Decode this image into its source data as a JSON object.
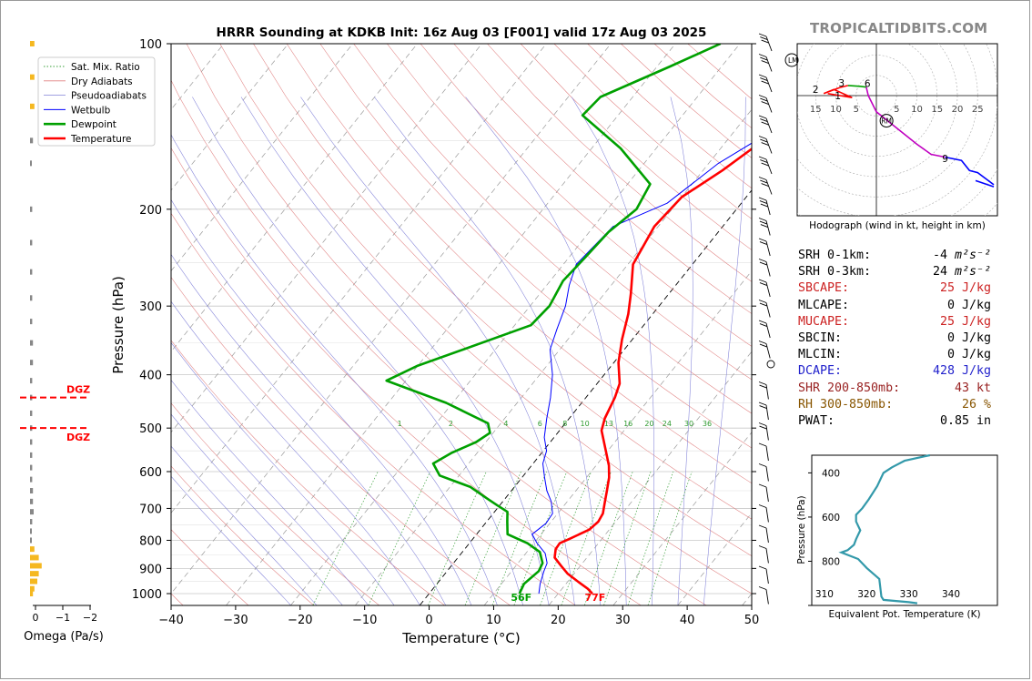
{
  "chart_data": {
    "type": "line",
    "title": "HRRR Sounding at KDKB Init: 16z Aug 03 [F001] valid 17z Aug 03 2025",
    "xlabel": "Temperature (°C)",
    "ylabel": "Pressure (hPa)",
    "x_ticks": [
      "−40",
      "−30",
      "−20",
      "−10",
      "0",
      "10",
      "20",
      "30",
      "40",
      "50"
    ],
    "y_ticks": [
      "100",
      "200",
      "300",
      "400",
      "500",
      "600",
      "700",
      "800",
      "900",
      "1000"
    ],
    "xlim": [
      -40,
      50
    ],
    "ylim": [
      1050,
      100
    ],
    "y_scale": "log",
    "legend": {
      "placement": "upper-left",
      "entries": [
        "Sat. Mix. Ratio",
        "Dry Adiabats",
        "Pseudoadiabats",
        "Wetbulb",
        "Dewpoint",
        "Temperature"
      ]
    },
    "mixing_ratio_labels": [
      "1",
      "2",
      "4",
      "6",
      "8",
      "10",
      "13",
      "16",
      "20",
      "24",
      "30",
      "36"
    ],
    "surface_labels": {
      "dewpoint": "56F",
      "temperature": "77F"
    },
    "series": [
      {
        "name": "Temperature",
        "color": "#ff0000",
        "points": [
          [
            25.3,
            1000
          ],
          [
            24.0,
            980
          ],
          [
            21.5,
            950
          ],
          [
            19.0,
            920
          ],
          [
            17.0,
            890
          ],
          [
            15.0,
            860
          ],
          [
            14.1,
            830
          ],
          [
            14.0,
            810
          ],
          [
            15.0,
            795
          ],
          [
            16.9,
            765
          ],
          [
            17.3,
            740
          ],
          [
            17.0,
            715
          ],
          [
            16.0,
            685
          ],
          [
            14.8,
            650
          ],
          [
            13.5,
            615
          ],
          [
            12.0,
            585
          ],
          [
            9.0,
            540
          ],
          [
            6.5,
            505
          ],
          [
            5.5,
            480
          ],
          [
            4.5,
            440
          ],
          [
            3.5,
            415
          ],
          [
            0.7,
            380
          ],
          [
            -1.6,
            345
          ],
          [
            -3.8,
            310
          ],
          [
            -5.9,
            285
          ],
          [
            -9.2,
            252
          ],
          [
            -10.6,
            215
          ],
          [
            -10.0,
            190
          ],
          [
            -7.0,
            170
          ],
          [
            -4.4,
            150
          ],
          [
            -4.5,
            135
          ],
          [
            -2.8,
            120
          ],
          [
            0.8,
            108
          ],
          [
            1.5,
            100
          ]
        ]
      },
      {
        "name": "Dewpoint",
        "color": "#00a000",
        "points": [
          [
            14.0,
            1000
          ],
          [
            13.5,
            960
          ],
          [
            14.2,
            910
          ],
          [
            13.8,
            880
          ],
          [
            12.0,
            840
          ],
          [
            9.0,
            810
          ],
          [
            4.8,
            780
          ],
          [
            3.2,
            740
          ],
          [
            2.0,
            710
          ],
          [
            -0.5,
            690
          ],
          [
            -3.0,
            670
          ],
          [
            -6.8,
            640
          ],
          [
            -13.0,
            610
          ],
          [
            -15.5,
            580
          ],
          [
            -14.0,
            555
          ],
          [
            -11.5,
            530
          ],
          [
            -10.5,
            510
          ],
          [
            -12.0,
            490
          ],
          [
            -21.0,
            450
          ],
          [
            -33.0,
            410
          ],
          [
            -30.0,
            385
          ],
          [
            -25.0,
            360
          ],
          [
            -17.5,
            325
          ],
          [
            -17.0,
            300
          ],
          [
            -18.0,
            270
          ],
          [
            -17.5,
            245
          ],
          [
            -17.0,
            220
          ],
          [
            -15.5,
            200
          ],
          [
            -16.5,
            180
          ],
          [
            -25.5,
            155
          ],
          [
            -35.5,
            135
          ],
          [
            -35.0,
            125
          ],
          [
            -28.0,
            110
          ],
          [
            -23.0,
            100
          ]
        ]
      },
      {
        "name": "Wetbulb",
        "color": "#0000ff",
        "points": [
          [
            17.0,
            1000
          ],
          [
            16.0,
            960
          ],
          [
            15.0,
            910
          ],
          [
            14.5,
            880
          ],
          [
            13.0,
            845
          ],
          [
            10.5,
            810
          ],
          [
            8.6,
            780
          ],
          [
            9.4,
            745
          ],
          [
            9.2,
            715
          ],
          [
            7.5,
            680
          ],
          [
            5.5,
            650
          ],
          [
            3.5,
            615
          ],
          [
            1.5,
            580
          ],
          [
            0.5,
            550
          ],
          [
            -1.5,
            520
          ],
          [
            -3.5,
            480
          ],
          [
            -5.5,
            440
          ],
          [
            -8.0,
            400
          ],
          [
            -11.5,
            360
          ],
          [
            -13.0,
            330
          ],
          [
            -14.5,
            300
          ],
          [
            -16.5,
            275
          ],
          [
            -18.0,
            252
          ],
          [
            -17.0,
            215
          ],
          [
            -11.5,
            195
          ],
          [
            -8.5,
            165
          ],
          [
            -5.5,
            150
          ],
          [
            -5.0,
            135
          ],
          [
            -4.0,
            120
          ],
          [
            0.0,
            105
          ],
          [
            1.0,
            100
          ]
        ]
      }
    ],
    "omega_panel": {
      "xlabel": "Omega (Pa/s)",
      "x_ticks": [
        "0",
        "−1",
        "−2"
      ],
      "dgz_labels": [
        "DGZ",
        "DGZ"
      ],
      "dgz_pressures": [
        440,
        500
      ],
      "bars": [
        [
          100,
          0.3
        ],
        [
          115,
          0.3
        ],
        [
          130,
          0.3
        ],
        [
          150,
          0.2
        ],
        [
          165,
          0.1
        ],
        [
          200,
          0.15
        ],
        [
          230,
          0.15
        ],
        [
          260,
          0.15
        ],
        [
          290,
          0.15
        ],
        [
          320,
          0.15
        ],
        [
          350,
          0.2
        ],
        [
          380,
          0.2
        ],
        [
          410,
          0.15
        ],
        [
          440,
          0.15
        ],
        [
          470,
          0.15
        ],
        [
          500,
          0.15
        ],
        [
          530,
          0.15
        ],
        [
          560,
          0.15
        ],
        [
          590,
          0.15
        ],
        [
          620,
          0.15
        ],
        [
          650,
          0.2
        ],
        [
          680,
          0.2
        ],
        [
          710,
          0.25
        ],
        [
          740,
          0.15
        ],
        [
          770,
          0.1
        ],
        [
          800,
          0.1
        ],
        [
          830,
          0.3
        ],
        [
          860,
          0.6
        ],
        [
          890,
          0.8
        ],
        [
          920,
          0.6
        ],
        [
          950,
          0.5
        ],
        [
          980,
          0.3
        ],
        [
          1000,
          0.2
        ]
      ]
    },
    "hodograph": {
      "title": "Hodograph (wind in kt, height in km)",
      "range_labels": [
        "15",
        "10",
        "5",
        "5",
        "10",
        "15",
        "20",
        "25"
      ],
      "height_labels": [
        "1",
        "2",
        "3",
        "6",
        "9"
      ],
      "marker_labels": [
        "RM",
        "LM"
      ],
      "segments": [
        {
          "color": "#ff0000",
          "points": [
            [
              -12.0,
              0.5
            ],
            [
              -9.0,
              0.0
            ],
            [
              -6.0,
              -0.5
            ],
            [
              -10.5,
              1.5
            ],
            [
              -13.0,
              0.5
            ],
            [
              -9.0,
              2.0
            ],
            [
              -7.0,
              2.5
            ]
          ]
        },
        {
          "color": "#00a000",
          "points": [
            [
              -7.0,
              2.5
            ],
            [
              -4.0,
              2.3
            ],
            [
              -2.5,
              2.1
            ]
          ]
        },
        {
          "color": "#c000c0",
          "points": [
            [
              -2.5,
              2.1
            ],
            [
              -2.0,
              0.0
            ],
            [
              0.0,
              -4.0
            ],
            [
              5.0,
              -8.0
            ],
            [
              10.0,
              -12.0
            ],
            [
              13.5,
              -14.5
            ],
            [
              17.0,
              -15.2
            ]
          ]
        },
        {
          "color": "#0000ff",
          "points": [
            [
              17.0,
              -15.2
            ],
            [
              21.0,
              -16.0
            ],
            [
              23.0,
              -18.5
            ],
            [
              25.0,
              -19.0
            ],
            [
              29.0,
              -22.0
            ]
          ]
        },
        {
          "color": "#0000ff",
          "points": [
            [
              24.5,
              -21.0
            ],
            [
              29.0,
              -22.5
            ]
          ]
        }
      ]
    },
    "theta_e_panel": {
      "xlabel": "Equivalent Pot. Temperature (K)",
      "ylabel": "Pressure (hPa)",
      "x_ticks": [
        "310",
        "320",
        "330",
        "340"
      ],
      "y_ticks": [
        "400",
        "600",
        "800"
      ],
      "xlim": [
        307,
        351
      ],
      "ylim": [
        1000,
        320
      ],
      "color": "#3399aa",
      "points": [
        [
          335.0,
          320
        ],
        [
          329.0,
          345
        ],
        [
          326.0,
          375
        ],
        [
          324.0,
          400
        ],
        [
          322.5,
          460
        ],
        [
          320.5,
          520
        ],
        [
          319.0,
          560
        ],
        [
          317.5,
          590
        ],
        [
          317.5,
          620
        ],
        [
          318.5,
          660
        ],
        [
          317.5,
          700
        ],
        [
          317.0,
          725
        ],
        [
          315.5,
          750
        ],
        [
          314.0,
          760
        ],
        [
          318.0,
          790
        ],
        [
          320.0,
          830
        ],
        [
          323.0,
          880
        ],
        [
          323.5,
          960
        ],
        [
          324.0,
          975
        ],
        [
          330.0,
          985
        ],
        [
          332.0,
          990
        ]
      ]
    }
  },
  "watermark": "TROPICALTIDBITS.COM",
  "indices": [
    {
      "label": "SRH 0-1km:",
      "value": "-4",
      "unit": "m²s⁻²",
      "color": "#000000"
    },
    {
      "label": "SRH 0-3km:",
      "value": "24",
      "unit": "m²s⁻²",
      "color": "#000000"
    },
    {
      "label": "SBCAPE:",
      "value": "25 J/kg",
      "color": "#cc2222"
    },
    {
      "label": "MLCAPE:",
      "value": "0 J/kg",
      "color": "#000000"
    },
    {
      "label": "MUCAPE:",
      "value": "25 J/kg",
      "color": "#cc2222"
    },
    {
      "label": "SBCIN:",
      "value": "0 J/kg",
      "color": "#000000"
    },
    {
      "label": "MLCIN:",
      "value": "0 J/kg",
      "color": "#000000"
    },
    {
      "label": "DCAPE:",
      "value": "428 J/kg",
      "color": "#2222cc"
    },
    {
      "label": "SHR 200-850mb:",
      "value": "43 kt",
      "color": "#992222"
    },
    {
      "label": "RH 300-850mb:",
      "value": "26 %",
      "color": "#885500"
    },
    {
      "label": "PWAT:",
      "value": "0.85 in",
      "color": "#000000"
    }
  ]
}
